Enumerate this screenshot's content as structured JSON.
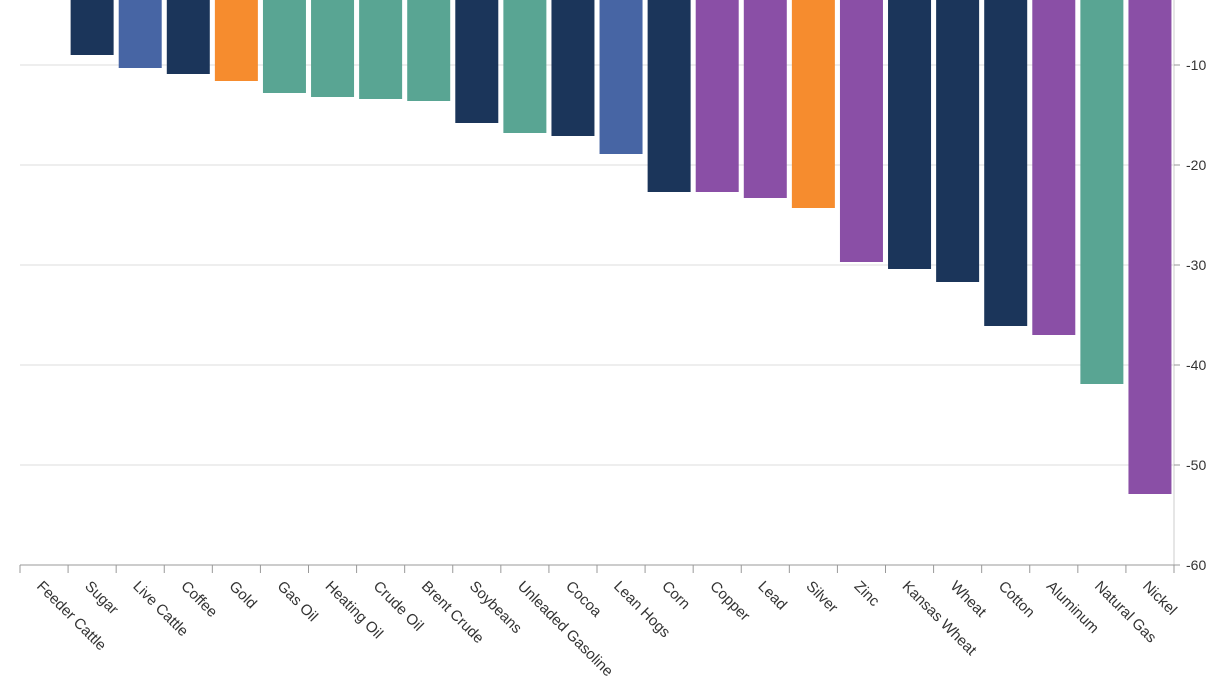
{
  "chart_data": {
    "type": "bar",
    "title": "",
    "xlabel": "",
    "ylabel": "",
    "ylim": [
      -60,
      0
    ],
    "y_ticks": [
      "-10",
      "-20",
      "-30",
      "-40",
      "-50",
      "-60"
    ],
    "y_tick_values": [
      -10,
      -20,
      -30,
      -40,
      -50,
      -60
    ],
    "grid": true,
    "categories": [
      "Feeder Cattle",
      "Sugar",
      "Live Cattle",
      "Coffee",
      "Gold",
      "Gas Oil",
      "Heating Oil",
      "Crude Oil",
      "Brent Crude",
      "Soybeans",
      "Unleaded Gasoline",
      "Cocoa",
      "Lean Hogs",
      "Corn",
      "Copper",
      "Lead",
      "Silver",
      "Zinc",
      "Kansas Wheat",
      "Wheat",
      "Cotton",
      "Aluminum",
      "Natural Gas",
      "Nickel"
    ],
    "values": [
      0,
      -9.0,
      -10.3,
      -10.9,
      -11.6,
      -12.8,
      -13.2,
      -13.4,
      -13.6,
      -15.8,
      -16.8,
      -17.1,
      -18.9,
      -22.7,
      -22.7,
      -23.3,
      -24.3,
      -29.7,
      -30.4,
      -31.7,
      -36.1,
      -37.0,
      -41.9,
      -52.9
    ],
    "bar_groups": [
      "none",
      "agri",
      "livestock",
      "agri",
      "precious",
      "energy",
      "energy",
      "energy",
      "energy",
      "agri",
      "energy",
      "agri",
      "livestock",
      "agri",
      "industrial",
      "industrial",
      "precious",
      "industrial",
      "agri",
      "agri",
      "agri",
      "industrial",
      "energy",
      "industrial"
    ],
    "group_colors": {
      "none": "#1b355a",
      "agri": "#1b355a",
      "livestock": "#4765a4",
      "precious": "#f68c2e",
      "energy": "#59a593",
      "industrial": "#8a4fa6"
    }
  }
}
